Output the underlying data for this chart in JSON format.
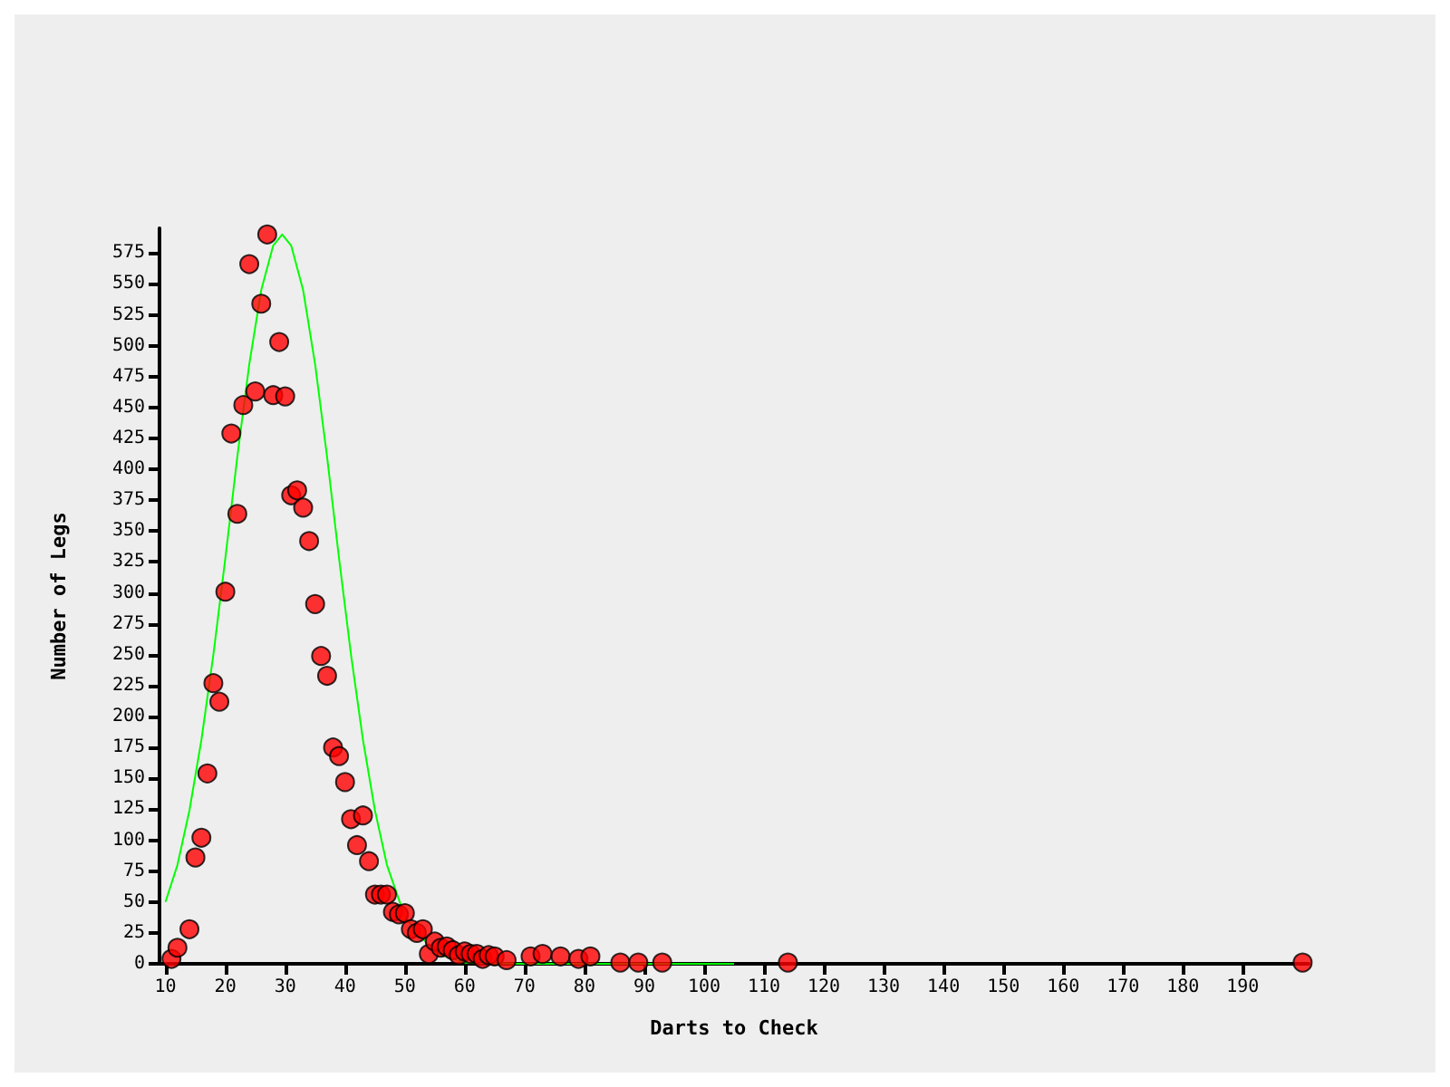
{
  "chart_data": {
    "type": "scatter",
    "xlabel": "Darts to Check",
    "ylabel": "Number of Legs",
    "xlim": [
      9,
      201
    ],
    "xticks": [
      10,
      20,
      30,
      40,
      50,
      60,
      70,
      80,
      90,
      100,
      110,
      120,
      130,
      140,
      150,
      160,
      170,
      180,
      190
    ],
    "ylim": [
      0,
      595
    ],
    "yticks": [
      0,
      25,
      50,
      75,
      100,
      125,
      150,
      175,
      200,
      225,
      250,
      275,
      300,
      325,
      350,
      375,
      400,
      425,
      450,
      475,
      500,
      525,
      550,
      575
    ],
    "grid": false,
    "marker": "circle",
    "series": [
      {
        "color": "#ff0000",
        "x": [
          11,
          12,
          14,
          15,
          16,
          17,
          18,
          19,
          20,
          21,
          22,
          23,
          24,
          25,
          26,
          27,
          28,
          29,
          30,
          31,
          32,
          33,
          34,
          35,
          36,
          37,
          38,
          39,
          40,
          41,
          42,
          43,
          44,
          45,
          46,
          47,
          48,
          49,
          50,
          51,
          52,
          53,
          54,
          55,
          56,
          57,
          58,
          59,
          60,
          61,
          62,
          63,
          64,
          65,
          67,
          71,
          73,
          76,
          79,
          81,
          86,
          89,
          93,
          114,
          200
        ],
        "values": [
          4,
          13,
          28,
          86,
          102,
          154,
          227,
          212,
          301,
          429,
          364,
          452,
          566,
          463,
          534,
          590,
          460,
          503,
          459,
          379,
          383,
          369,
          342,
          291,
          249,
          233,
          175,
          168,
          147,
          117,
          96,
          120,
          83,
          56,
          56,
          56,
          42,
          40,
          41,
          28,
          25,
          28,
          8,
          18,
          13,
          14,
          11,
          7,
          10,
          8,
          8,
          4,
          7,
          6,
          3,
          6,
          8,
          6,
          4,
          6,
          1,
          1,
          1,
          1,
          1
        ]
      },
      {
        "type": "line",
        "color": "#00ff00",
        "marker": "none",
        "x": [
          10,
          12,
          14,
          16,
          18,
          20,
          22,
          24,
          26,
          28,
          29.5,
          31,
          33,
          35,
          37,
          39,
          41,
          43,
          45,
          47,
          50,
          55,
          60,
          70,
          105
        ],
        "values": [
          50,
          80,
          124,
          181,
          250,
          328,
          410,
          485,
          545,
          581,
          590,
          581,
          545,
          485,
          410,
          328,
          250,
          181,
          124,
          80,
          38,
          9,
          1,
          0,
          0
        ]
      }
    ]
  }
}
